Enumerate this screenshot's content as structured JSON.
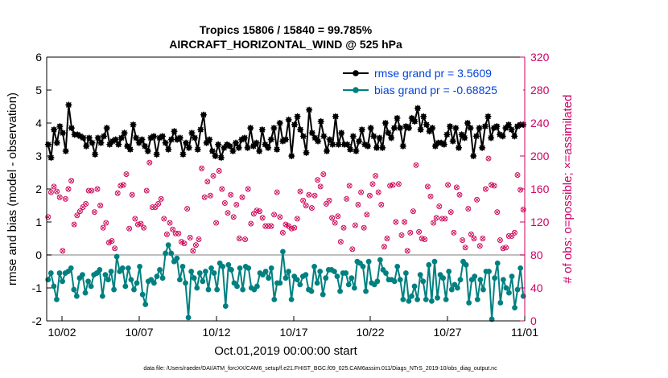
{
  "chart_data": {
    "type": "line",
    "title_line1": "Tropics 15806 / 15840 = 99.785%",
    "title_line2": "AIRCRAFT_HORIZONTAL_WIND @ 525 hPa",
    "xlabel": "Oct.01,2019 00:00:00 start",
    "ylabel_left": "rmse and bias (model - observation)",
    "ylabel_right": "# of obs: o=possible; ×=assimilated",
    "ylim_left": [
      -2,
      6
    ],
    "ylim_right": [
      0,
      320
    ],
    "xlim_days": [
      0,
      31
    ],
    "left_ticks": [
      "-2",
      "-1",
      "0",
      "1",
      "2",
      "3",
      "4",
      "5",
      "6"
    ],
    "right_ticks": [
      "0",
      "40",
      "80",
      "120",
      "160",
      "200",
      "240",
      "280",
      "320"
    ],
    "x_ticks": [
      {
        "day": 1,
        "label": "10/02"
      },
      {
        "day": 6,
        "label": "10/07"
      },
      {
        "day": 11,
        "label": "10/12"
      },
      {
        "day": 16,
        "label": "10/17"
      },
      {
        "day": 21,
        "label": "10/22"
      },
      {
        "day": 26,
        "label": "10/27"
      },
      {
        "day": 31,
        "label": "11/01"
      }
    ],
    "zero_line_value": 0,
    "colors": {
      "rmse": "#000000",
      "bias": "#008080",
      "obs": "#cc0055",
      "legend_text": "#0044dd",
      "right_axis": "#cc0066",
      "zero_line": "#aaaaaa"
    },
    "series": [
      {
        "name": "rmse",
        "legend": "rmse grand pr = 3.5609",
        "values": [
          3.35,
          2.95,
          3.8,
          3.4,
          3.9,
          3.7,
          3.15,
          4.55,
          3.85,
          3.65,
          3.65,
          3.6,
          3.55,
          3.3,
          3.55,
          3.4,
          3.05,
          3.55,
          3.4,
          3.6,
          3.85,
          3.35,
          3.45,
          3.5,
          3.35,
          3.55,
          3.7,
          3.3,
          3.2,
          3.95,
          3.55,
          3.4,
          3.5,
          3.3,
          3.15,
          3.55,
          3.6,
          3.05,
          3.55,
          3.6,
          3.4,
          3.2,
          3.5,
          3.75,
          3.5,
          3.55,
          3.05,
          3.4,
          3.25,
          3.7,
          3.55,
          3.2,
          3.8,
          4.25,
          3.4,
          3.5,
          3.15,
          3.0,
          3.35,
          2.95,
          3.25,
          3.35,
          3.3,
          3.15,
          3.4,
          3.25,
          3.5,
          3.55,
          3.25,
          3.85,
          3.3,
          3.4,
          3.15,
          3.8,
          3.35,
          3.25,
          3.5,
          3.85,
          3.2,
          4.0,
          3.45,
          3.5,
          4.1,
          3.0,
          3.95,
          4.2,
          3.8,
          3.6,
          3.1,
          4.4,
          3.7,
          3.55,
          3.45,
          4.05,
          3.6,
          3.15,
          3.5,
          3.35,
          4.2,
          3.35,
          3.7,
          3.35,
          3.35,
          3.2,
          3.6,
          3.15,
          3.45,
          3.8,
          3.35,
          3.3,
          3.85,
          3.6,
          3.25,
          3.55,
          3.25,
          4.0,
          3.7,
          3.55,
          3.85,
          4.15,
          3.85,
          3.3,
          3.9,
          3.85,
          4.15,
          4.05,
          4.45,
          3.8,
          4.2,
          3.95,
          3.75,
          3.85,
          3.3,
          3.4,
          3.4,
          3.35,
          3.65,
          3.9,
          3.45,
          3.85,
          3.25,
          3.65,
          3.55,
          4.0,
          3.85,
          3.0,
          3.6,
          3.85,
          3.25,
          3.9,
          4.2,
          3.55,
          3.85,
          3.9,
          3.65,
          3.6,
          3.85,
          3.95,
          3.8,
          3.6,
          3.9,
          3.95,
          3.95
        ]
      },
      {
        "name": "bias",
        "legend": "bias grand pr = -0.68825",
        "values": [
          -0.75,
          -0.55,
          -0.95,
          -1.35,
          -0.55,
          -0.8,
          -0.55,
          -0.5,
          -0.4,
          -1.05,
          -1.25,
          -0.7,
          -0.6,
          -1.15,
          -0.8,
          -0.95,
          -0.6,
          -0.55,
          -0.45,
          -1.25,
          -0.6,
          -0.75,
          -0.5,
          -1.05,
          -0.05,
          -0.5,
          -0.4,
          -0.95,
          -0.4,
          -0.75,
          -1.05,
          -0.85,
          -0.35,
          -1.2,
          -1.5,
          -0.8,
          -0.75,
          -0.85,
          -0.65,
          -0.45,
          -0.7,
          0.05,
          0.3,
          0.05,
          -0.2,
          -0.1,
          -0.75,
          -0.35,
          -0.85,
          -1.9,
          -0.5,
          -0.7,
          -1.0,
          -0.55,
          -0.8,
          -0.5,
          -1.05,
          -0.4,
          -0.55,
          -1.05,
          -0.25,
          -0.35,
          -1.55,
          -0.3,
          -0.45,
          -0.85,
          -0.95,
          -0.4,
          -1.05,
          -0.35,
          -0.4,
          -1.0,
          -1.05,
          -0.95,
          -0.55,
          -0.6,
          -0.5,
          -0.7,
          -0.4,
          -1.35,
          -0.85,
          -0.85,
          0.1,
          -0.7,
          -0.5,
          -1.35,
          -0.65,
          -0.75,
          -0.9,
          -0.65,
          -0.6,
          -1.05,
          -1.1,
          -0.35,
          -0.85,
          -0.5,
          -1.2,
          -0.7,
          -0.45,
          -0.45,
          -0.5,
          -0.65,
          -1.1,
          -0.55,
          -0.55,
          -0.9,
          -0.7,
          -1.0,
          -0.2,
          -0.25,
          -0.35,
          -1.1,
          -0.2,
          -0.85,
          -0.9,
          -0.8,
          -0.15,
          -0.45,
          -0.55,
          -0.75,
          -0.75,
          -0.8,
          -0.35,
          -0.75,
          -1.35,
          -0.55,
          -1.4,
          -1.25,
          -0.95,
          -1.35,
          -0.6,
          -0.8,
          -1.35,
          -0.3,
          -1.4,
          -0.2,
          -1.3,
          -0.6,
          -0.7,
          -1.35,
          -0.5,
          -1.05,
          -0.9,
          -1.0,
          -0.75,
          -0.2,
          -0.3,
          -1.45,
          -0.75,
          -0.65,
          -1.35,
          -0.75,
          -1.05,
          -0.5,
          -0.5,
          -1.95,
          -0.7,
          -0.25,
          -1.45,
          -0.75,
          -1.0,
          -1.15,
          -0.65,
          -1.6,
          -1.05,
          -0.4,
          -1.25
        ]
      },
      {
        "name": "obs_possible",
        "values": [
          126,
          156,
          163,
          157,
          150,
          85,
          148,
          160,
          170,
          117,
          128,
          133,
          138,
          142,
          158,
          158,
          132,
          160,
          140,
          113,
          119,
          95,
          97,
          88,
          155,
          164,
          165,
          178,
          112,
          153,
          124,
          117,
          118,
          113,
          158,
          192,
          138,
          138,
          142,
          148,
          124,
          105,
          119,
          111,
          106,
          106,
          96,
          94,
          136,
          101,
          85,
          92,
          99,
          185,
          150,
          169,
          152,
          176,
          119,
          182,
          160,
          143,
          131,
          153,
          126,
          141,
          100,
          150,
          99,
          160,
          118,
          130,
          134,
          133,
          125,
          115,
          115,
          115,
          129,
          156,
          126,
          107,
          117,
          115,
          112,
          113,
          124,
          157,
          146,
          140,
          153,
          137,
          152,
          171,
          163,
          178,
          142,
          146,
          125,
          119,
          127,
          96,
          113,
          148,
          164,
          87,
          116,
          141,
          156,
          113,
          129,
          152,
          166,
          176,
          156,
          141,
          90,
          100,
          164,
          165,
          120,
          166,
          104,
          120,
          85,
          107,
          133,
          189,
          108,
          100,
          99,
          163,
          151,
          119,
          125,
          139,
          124,
          124,
          165,
          132,
          107,
          162,
          153,
          98,
          89,
          136,
          105,
          100,
          147,
          91,
          100,
          160,
          197,
          165,
          164,
          132,
          98,
          88,
          89,
          103,
          103,
          107,
          177,
          159,
          135
        ]
      }
    ]
  },
  "footer": "data file: /Users/raeder/DAI/ATM_forcXX/CAM6_setup/f.e21.FHIST_BGC.f09_025.CAM6assim.011/Diags_NTrS_2019-10/obs_diag_output.nc"
}
